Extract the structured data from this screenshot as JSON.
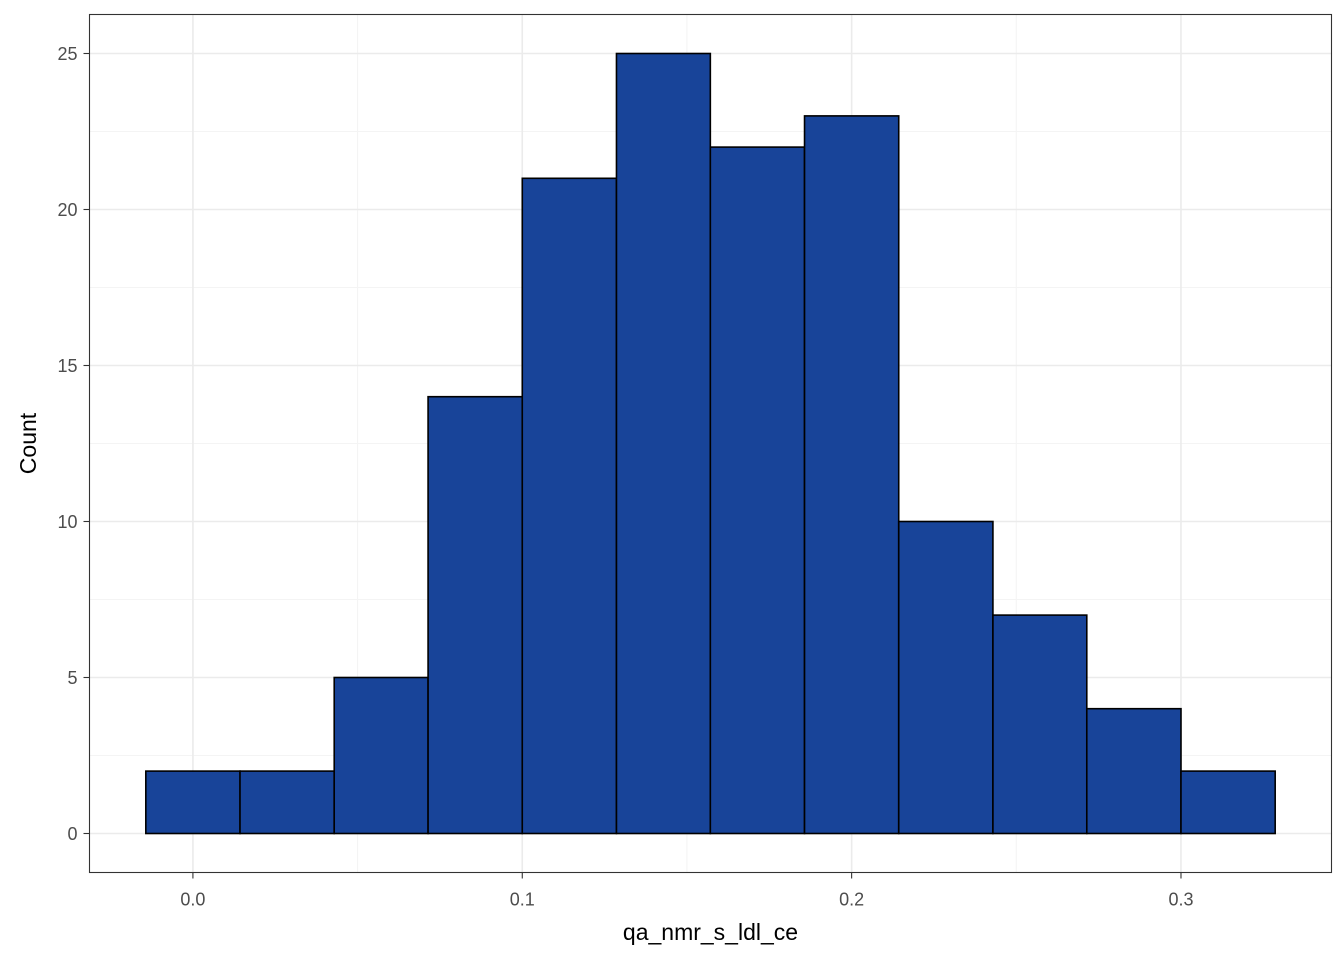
{
  "chart_data": {
    "type": "bar",
    "subtype": "histogram",
    "xlabel": "qa_nmr_s_ldl_ce",
    "ylabel": "Count",
    "bins": [
      {
        "x0": -0.0143,
        "x1": 0.0143,
        "count": 2
      },
      {
        "x0": 0.0143,
        "x1": 0.0429,
        "count": 2
      },
      {
        "x0": 0.0429,
        "x1": 0.0714,
        "count": 5
      },
      {
        "x0": 0.0714,
        "x1": 0.1,
        "count": 14
      },
      {
        "x0": 0.1,
        "x1": 0.1286,
        "count": 21
      },
      {
        "x0": 0.1286,
        "x1": 0.1571,
        "count": 25
      },
      {
        "x0": 0.1571,
        "x1": 0.1857,
        "count": 22
      },
      {
        "x0": 0.1857,
        "x1": 0.2143,
        "count": 23
      },
      {
        "x0": 0.2143,
        "x1": 0.2429,
        "count": 10
      },
      {
        "x0": 0.2429,
        "x1": 0.2714,
        "count": 7
      },
      {
        "x0": 0.2714,
        "x1": 0.3,
        "count": 4
      },
      {
        "x0": 0.3,
        "x1": 0.3286,
        "count": 2
      }
    ],
    "x_ticks": [
      0.0,
      0.1,
      0.2,
      0.3
    ],
    "x_tick_labels": [
      "0.0",
      "0.1",
      "0.2",
      "0.3"
    ],
    "y_ticks": [
      0,
      5,
      10,
      15,
      20,
      25
    ],
    "y_tick_labels": [
      "0",
      "5",
      "10",
      "15",
      "20",
      "25"
    ],
    "xlim": [
      -0.0314,
      0.3457
    ],
    "ylim": [
      -1.25,
      26.25
    ],
    "grid": true,
    "colors": {
      "bar_fill": "#184499",
      "bar_stroke": "#000000",
      "grid_major": "#ebebeb",
      "grid_minor": "#f4f4f4",
      "panel_border": "#333333",
      "tick_label": "#4d4d4d"
    }
  }
}
